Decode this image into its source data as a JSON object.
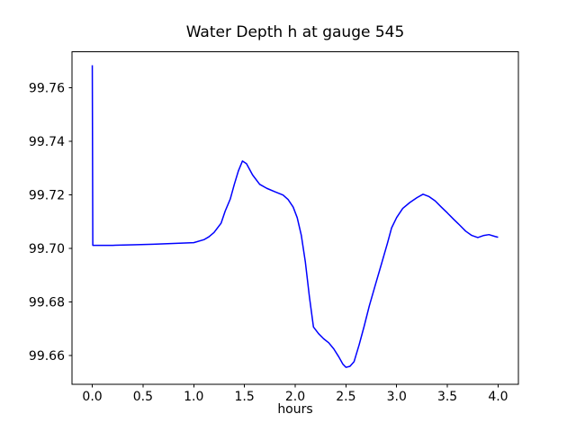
{
  "figure": {
    "background": "#ffffff",
    "frame_color": "#000000"
  },
  "chart_data": {
    "type": "line",
    "title": "Water Depth h at gauge 545",
    "xlabel": "hours",
    "ylabel": "",
    "grid": false,
    "legend": false,
    "xlim": [
      -0.2,
      4.2
    ],
    "ylim": [
      99.6492,
      99.7735
    ],
    "x_ticks": [
      0.0,
      0.5,
      1.0,
      1.5,
      2.0,
      2.5,
      3.0,
      3.5,
      4.0
    ],
    "x_tick_labels": [
      "0.0",
      "0.5",
      "1.0",
      "1.5",
      "2.0",
      "2.5",
      "3.0",
      "3.5",
      "4.0"
    ],
    "y_ticks": [
      99.66,
      99.68,
      99.7,
      99.72,
      99.74,
      99.76
    ],
    "y_tick_labels": [
      "99.66",
      "99.68",
      "99.70",
      "99.72",
      "99.74",
      "99.76"
    ],
    "series": [
      {
        "name": "water-depth-h",
        "color": "#0000ff",
        "linewidth": 1.5,
        "x": [
          0.0,
          0.005,
          0.2,
          0.4,
          0.6,
          0.8,
          1.0,
          1.1,
          1.15,
          1.2,
          1.27,
          1.31,
          1.36,
          1.4,
          1.44,
          1.48,
          1.52,
          1.58,
          1.65,
          1.72,
          1.8,
          1.88,
          1.93,
          1.98,
          2.02,
          2.06,
          2.1,
          2.14,
          2.18,
          2.23,
          2.28,
          2.33,
          2.38,
          2.43,
          2.47,
          2.5,
          2.54,
          2.58,
          2.63,
          2.68,
          2.73,
          2.79,
          2.85,
          2.91,
          2.95,
          3.0,
          3.06,
          3.13,
          3.2,
          3.26,
          3.32,
          3.38,
          3.44,
          3.5,
          3.56,
          3.62,
          3.68,
          3.74,
          3.8,
          3.86,
          3.91,
          3.97,
          4.0
        ],
        "y": [
          99.7685,
          99.7012,
          99.7012,
          99.7014,
          99.7016,
          99.7019,
          99.7022,
          99.7033,
          99.7044,
          99.706,
          99.7095,
          99.714,
          99.7185,
          99.724,
          99.729,
          99.7327,
          99.7317,
          99.7275,
          99.724,
          99.7225,
          99.7212,
          99.72,
          99.7183,
          99.7155,
          99.7115,
          99.705,
          99.695,
          99.682,
          99.6707,
          99.6682,
          99.6663,
          99.6648,
          99.6625,
          99.6595,
          99.6568,
          99.6556,
          99.656,
          99.6577,
          99.664,
          99.671,
          99.6785,
          99.6864,
          99.6942,
          99.7021,
          99.7077,
          99.7116,
          99.715,
          99.7172,
          99.719,
          99.7203,
          99.7194,
          99.7178,
          99.7155,
          99.7133,
          99.711,
          99.7088,
          99.7065,
          99.7049,
          99.7041,
          99.7049,
          99.7052,
          99.7045,
          99.7042
        ]
      }
    ]
  }
}
